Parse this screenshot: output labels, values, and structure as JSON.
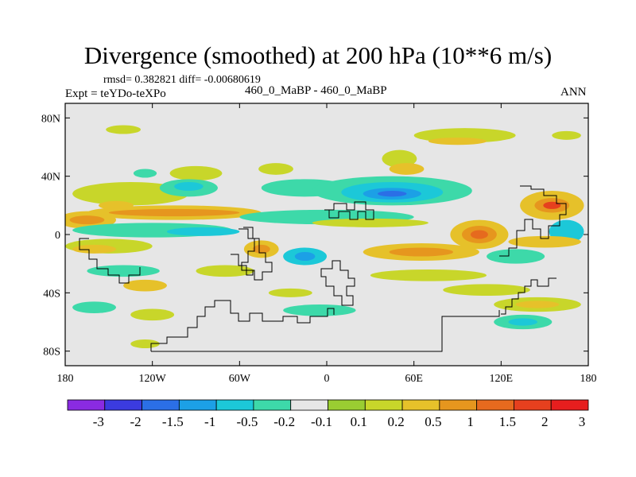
{
  "chart_data": {
    "type": "heatmap",
    "title": "Divergence (smoothed) at 200 hPa (10**6 m/s)",
    "stats_label": "rmsd= 0.382821 diff= -0.00680619",
    "experiment_label": "Expt = teYDo-teXPo",
    "difference_label": "460_0_MaBP - 460_0_MaBP",
    "season": "ANN",
    "x_range": [
      -180,
      180
    ],
    "y_range": [
      -90,
      90
    ],
    "x_ticks": [
      {
        "value": -180,
        "label": "180"
      },
      {
        "value": -120,
        "label": "120W"
      },
      {
        "value": -60,
        "label": "60W"
      },
      {
        "value": 0,
        "label": "0"
      },
      {
        "value": 60,
        "label": "60E"
      },
      {
        "value": 120,
        "label": "120E"
      },
      {
        "value": 180,
        "label": "180"
      }
    ],
    "y_ticks": [
      {
        "value": 80,
        "label": "80N"
      },
      {
        "value": 40,
        "label": "40N"
      },
      {
        "value": 0,
        "label": "0"
      },
      {
        "value": -40,
        "label": "40S"
      },
      {
        "value": -80,
        "label": "80S"
      }
    ],
    "colorbar": {
      "colors": [
        "#8a2be2",
        "#3b3bdf",
        "#2b6fe6",
        "#1ca0e6",
        "#1cc8d8",
        "#3dd9a9",
        "#e6e6e6",
        "#9acd32",
        "#c8d62a",
        "#e6c12a",
        "#e6961e",
        "#e66a1e",
        "#e6401e",
        "#e61e1e"
      ],
      "labels": [
        "-3",
        "-2",
        "-1.5",
        "-1",
        "-0.5",
        "-0.2",
        "-0.1",
        "0.1",
        "0.2",
        "0.5",
        "1",
        "1.5",
        "2",
        "3"
      ]
    },
    "bands": [
      {
        "lon": -140,
        "lat": 72,
        "rx": 12,
        "ry": 3,
        "level": 0.2
      },
      {
        "lon": 95,
        "lat": 68,
        "rx": 35,
        "ry": 5,
        "level": 0.2
      },
      {
        "lon": 90,
        "lat": 64,
        "rx": 20,
        "ry": 2.5,
        "level": 0.5
      },
      {
        "lon": 165,
        "lat": 68,
        "rx": 10,
        "ry": 3,
        "level": 0.2
      },
      {
        "lon": 50,
        "lat": 52,
        "rx": 12,
        "ry": 6,
        "level": 0.2
      },
      {
        "lon": 55,
        "lat": 45,
        "rx": 12,
        "ry": 4,
        "level": 0.5
      },
      {
        "lon": -125,
        "lat": 42,
        "rx": 8,
        "ry": 3,
        "level": -0.2
      },
      {
        "lon": -90,
        "lat": 42,
        "rx": 18,
        "ry": 5,
        "level": 0.2
      },
      {
        "lon": -35,
        "lat": 45,
        "rx": 12,
        "ry": 4,
        "level": 0.2
      },
      {
        "lon": -135,
        "lat": 28,
        "rx": 40,
        "ry": 8,
        "level": 0.2
      },
      {
        "lon": -145,
        "lat": 20,
        "rx": 12,
        "ry": 3,
        "level": 0.5
      },
      {
        "lon": -95,
        "lat": 32,
        "rx": 20,
        "ry": 6,
        "level": -0.2
      },
      {
        "lon": -95,
        "lat": 33,
        "rx": 10,
        "ry": 3,
        "level": -0.5
      },
      {
        "lon": -15,
        "lat": 32,
        "rx": 30,
        "ry": 6,
        "level": -0.2
      },
      {
        "lon": 45,
        "lat": 30,
        "rx": 55,
        "ry": 10,
        "level": -0.2
      },
      {
        "lon": 45,
        "lat": 29,
        "rx": 35,
        "ry": 7,
        "level": -0.5
      },
      {
        "lon": 45,
        "lat": 28,
        "rx": 20,
        "ry": 4,
        "level": -1
      },
      {
        "lon": 45,
        "lat": 28,
        "rx": 10,
        "ry": 2,
        "level": -1.5
      },
      {
        "lon": 155,
        "lat": 20,
        "rx": 22,
        "ry": 10,
        "level": 0.5
      },
      {
        "lon": 155,
        "lat": 20,
        "rx": 12,
        "ry": 5,
        "level": 1
      },
      {
        "lon": 155,
        "lat": 20,
        "rx": 6,
        "ry": 2.5,
        "level": 2
      },
      {
        "lon": -165,
        "lat": 10,
        "rx": 20,
        "ry": 6,
        "level": 0.5
      },
      {
        "lon": -165,
        "lat": 10,
        "rx": 12,
        "ry": 3,
        "level": 1
      },
      {
        "lon": -105,
        "lat": 15,
        "rx": 60,
        "ry": 5,
        "level": 0.5
      },
      {
        "lon": -105,
        "lat": 15,
        "rx": 45,
        "ry": 2.5,
        "level": 1
      },
      {
        "lon": -120,
        "lat": 3,
        "rx": 55,
        "ry": 5,
        "level": -0.2
      },
      {
        "lon": -85,
        "lat": 2,
        "rx": 25,
        "ry": 3,
        "level": -0.5
      },
      {
        "lon": 0,
        "lat": 12,
        "rx": 60,
        "ry": 5,
        "level": -0.2
      },
      {
        "lon": 30,
        "lat": 8,
        "rx": 40,
        "ry": 3,
        "level": 0.2
      },
      {
        "lon": 105,
        "lat": 0,
        "rx": 20,
        "ry": 10,
        "level": 0.5
      },
      {
        "lon": 105,
        "lat": 0,
        "rx": 12,
        "ry": 6,
        "level": 1
      },
      {
        "lon": 105,
        "lat": 0,
        "rx": 6,
        "ry": 3,
        "level": 1.5
      },
      {
        "lon": 165,
        "lat": 2,
        "rx": 12,
        "ry": 8,
        "level": -0.5
      },
      {
        "lon": 150,
        "lat": -5,
        "rx": 25,
        "ry": 4,
        "level": 0.5
      },
      {
        "lon": -150,
        "lat": -8,
        "rx": 30,
        "ry": 5,
        "level": 0.2
      },
      {
        "lon": -160,
        "lat": -10,
        "rx": 15,
        "ry": 3,
        "level": 0.5
      },
      {
        "lon": -45,
        "lat": -10,
        "rx": 12,
        "ry": 6,
        "level": 0.5
      },
      {
        "lon": -45,
        "lat": -10,
        "rx": 6,
        "ry": 3,
        "level": 1
      },
      {
        "lon": -15,
        "lat": -15,
        "rx": 15,
        "ry": 6,
        "level": -0.5
      },
      {
        "lon": -15,
        "lat": -15,
        "rx": 7,
        "ry": 3,
        "level": -1
      },
      {
        "lon": 65,
        "lat": -12,
        "rx": 40,
        "ry": 6,
        "level": 0.5
      },
      {
        "lon": 65,
        "lat": -12,
        "rx": 22,
        "ry": 3,
        "level": 1
      },
      {
        "lon": 130,
        "lat": -15,
        "rx": 20,
        "ry": 5,
        "level": -0.2
      },
      {
        "lon": -140,
        "lat": -25,
        "rx": 25,
        "ry": 4,
        "level": -0.2
      },
      {
        "lon": -70,
        "lat": -25,
        "rx": 20,
        "ry": 4,
        "level": 0.2
      },
      {
        "lon": 70,
        "lat": -28,
        "rx": 40,
        "ry": 4,
        "level": 0.2
      },
      {
        "lon": -125,
        "lat": -35,
        "rx": 15,
        "ry": 4,
        "level": 0.5
      },
      {
        "lon": -25,
        "lat": -40,
        "rx": 15,
        "ry": 3,
        "level": 0.2
      },
      {
        "lon": 110,
        "lat": -38,
        "rx": 30,
        "ry": 4,
        "level": 0.2
      },
      {
        "lon": -160,
        "lat": -50,
        "rx": 15,
        "ry": 4,
        "level": -0.2
      },
      {
        "lon": -120,
        "lat": -55,
        "rx": 15,
        "ry": 4,
        "level": 0.2
      },
      {
        "lon": -5,
        "lat": -52,
        "rx": 25,
        "ry": 4,
        "level": -0.2
      },
      {
        "lon": 145,
        "lat": -48,
        "rx": 30,
        "ry": 5,
        "level": 0.2
      },
      {
        "lon": 145,
        "lat": -48,
        "rx": 15,
        "ry": 2.5,
        "level": 0.5
      },
      {
        "lon": 135,
        "lat": -60,
        "rx": 20,
        "ry": 5,
        "level": -0.2
      },
      {
        "lon": 135,
        "lat": -60,
        "rx": 10,
        "ry": 2.5,
        "level": -0.5
      },
      {
        "lon": -125,
        "lat": -75,
        "rx": 10,
        "ry": 3,
        "level": 0.2
      }
    ]
  }
}
